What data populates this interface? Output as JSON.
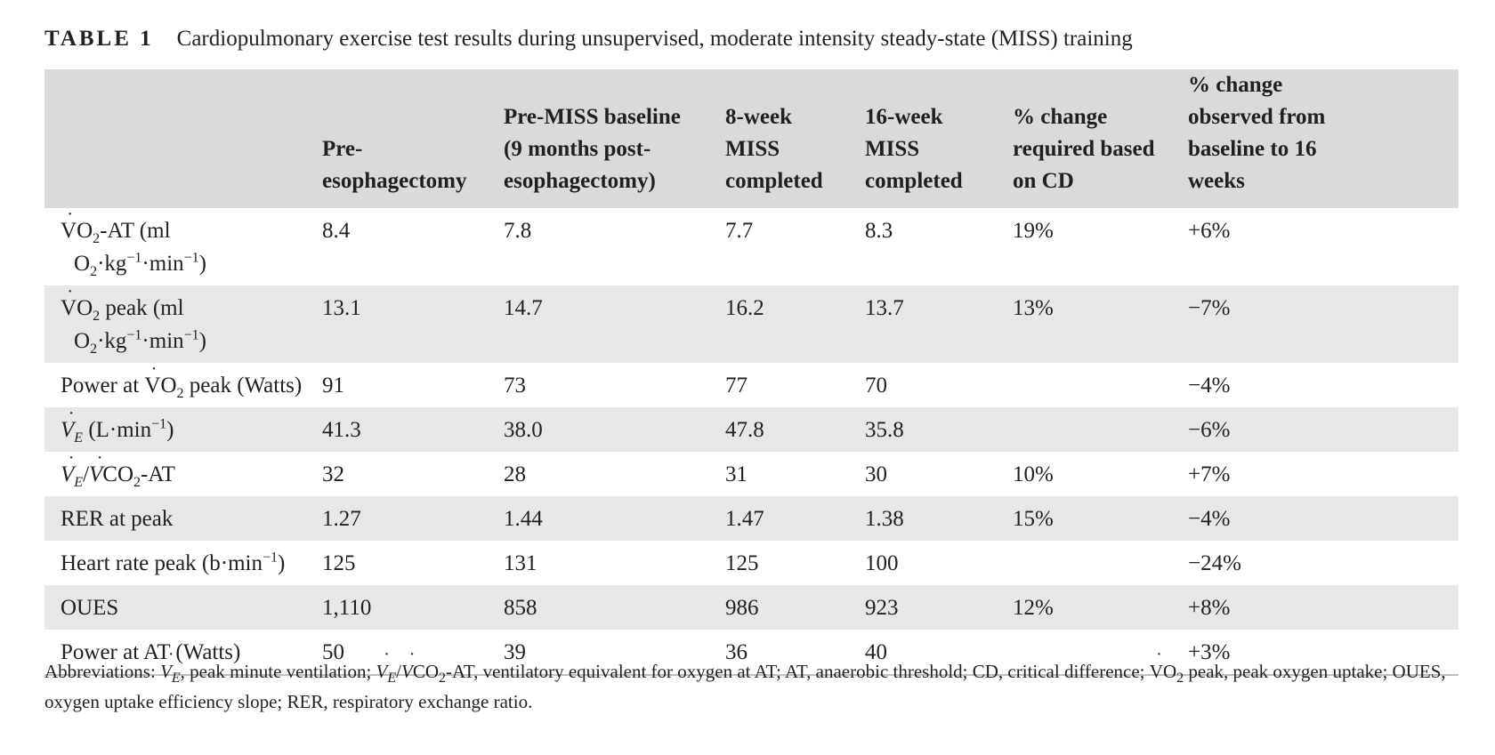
{
  "caption": {
    "label": "TABLE 1",
    "text": "Cardiopulmonary exercise test results during unsupervised, moderate intensity steady-state (MISS) training"
  },
  "columns": [
    "",
    "Pre-esophagectomy",
    "Pre-MISS baseline (9 months post-esophagectomy)",
    "8-week MISS completed",
    "16-week MISS completed",
    "% change required based on CD",
    "% change observed from baseline to 16 weeks"
  ],
  "rows": [
    {
      "parameter": "V̇O2-AT (ml O2·kg−1·min−1)",
      "values": [
        "8.4",
        "7.8",
        "7.7",
        "8.3",
        "19%",
        "+6%"
      ]
    },
    {
      "parameter": "V̇O2 peak (ml O2·kg−1·min−1)",
      "values": [
        "13.1",
        "14.7",
        "16.2",
        "13.7",
        "13%",
        "−7%"
      ]
    },
    {
      "parameter": "Power at V̇O2 peak (Watts)",
      "values": [
        "91",
        "73",
        "77",
        "70",
        "",
        "−4%"
      ]
    },
    {
      "parameter": "V̇E (L·min−1)",
      "values": [
        "41.3",
        "38.0",
        "47.8",
        "35.8",
        "",
        "−6%"
      ]
    },
    {
      "parameter": "V̇E/V̇CO2-AT",
      "values": [
        "32",
        "28",
        "31",
        "30",
        "10%",
        "+7%"
      ]
    },
    {
      "parameter": "RER at peak",
      "values": [
        "1.27",
        "1.44",
        "1.47",
        "1.38",
        "15%",
        "−4%"
      ]
    },
    {
      "parameter": "Heart rate peak (b·min−1)",
      "values": [
        "125",
        "131",
        "125",
        "100",
        "",
        "−24%"
      ]
    },
    {
      "parameter": "OUES",
      "values": [
        "1,110",
        "858",
        "986",
        "923",
        "12%",
        "+8%"
      ]
    },
    {
      "parameter": "Power at AT (Watts)",
      "values": [
        "50",
        "39",
        "36",
        "40",
        "",
        "+3%"
      ]
    }
  ],
  "footnote": "Abbreviations: V̇E, peak minute ventilation; V̇E/V̇CO2-AT, ventilatory equivalent for oxygen at AT; AT, anaerobic threshold; CD, critical difference; V̇O2 peak, peak oxygen uptake; OUES, oxygen uptake efficiency slope; RER, respiratory exchange ratio."
}
